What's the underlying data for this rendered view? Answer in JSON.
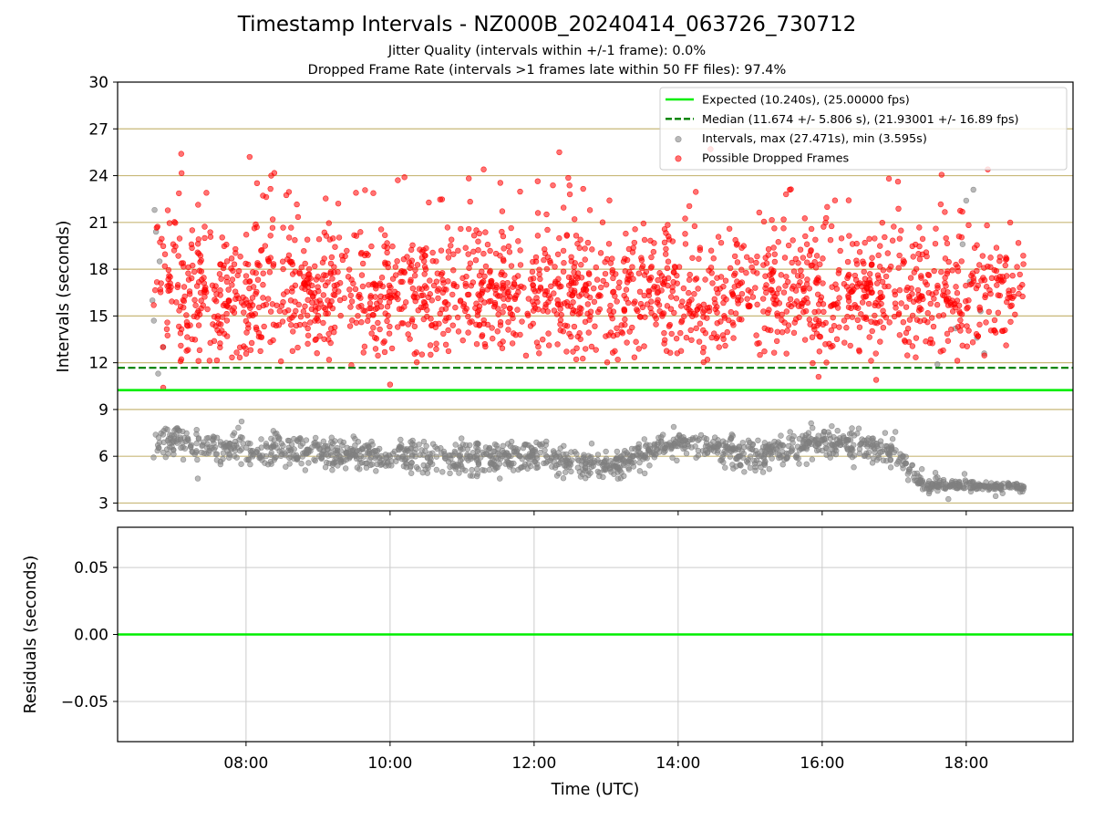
{
  "figure": {
    "title": "Timestamp Intervals - NZ000B_20240414_063726_730712",
    "subtitle_1": "Jitter Quality (intervals within +/-1 frame): 0.0%",
    "subtitle_2": "Dropped Frame Rate (intervals >1 frames late within 50 FF files): 97.4%"
  },
  "colors": {
    "expected": "#00ee00",
    "median": "#007f00",
    "intervals": "#808080",
    "dropped": "#ff0000",
    "hgrid": "#c8b878",
    "grid": "#cccccc"
  },
  "chart_data": [
    {
      "type": "scatter",
      "panel": "intervals",
      "ylabel": "Intervals (seconds)",
      "xlabel": "",
      "xlim": [
        "06:13",
        "19:29"
      ],
      "ylim": [
        2.5,
        30
      ],
      "yticks": [
        3,
        6,
        9,
        12,
        15,
        18,
        21,
        24,
        27,
        30
      ],
      "yticklabels": [
        "3",
        "6",
        "9",
        "12",
        "15",
        "18",
        "21",
        "24",
        "27",
        "30"
      ],
      "xticks": [
        "08:00",
        "10:00",
        "12:00",
        "14:00",
        "16:00",
        "18:00"
      ],
      "grid": "horizontal",
      "legend_position": "top-right",
      "reference_lines": [
        {
          "name": "Expected (10.240s), (25.00000 fps)",
          "y": 10.24,
          "style": "solid",
          "color": "#00ee00"
        },
        {
          "name": "Median (11.674 +/- 5.806 s), (21.93001 +/- 16.89 fps)",
          "y": 11.674,
          "style": "dashed",
          "color": "#007f00"
        }
      ],
      "series": [
        {
          "name": "Intervals, max (27.471s), min (3.595s)",
          "color": "#808080",
          "x_range": [
            "06:43",
            "18:48"
          ],
          "y_trend": [
            {
              "x": "06:43",
              "y_range": [
                5.5,
                8.5
              ]
            },
            {
              "x": "08:00",
              "y_range": [
                5.0,
                8.0
              ]
            },
            {
              "x": "10:00",
              "y_range": [
                4.5,
                7.5
              ]
            },
            {
              "x": "12:00",
              "y_range": [
                4.5,
                7.5
              ]
            },
            {
              "x": "13:00",
              "y_range": [
                4.0,
                6.5
              ]
            },
            {
              "x": "14:00",
              "y_range": [
                5.5,
                8.5
              ]
            },
            {
              "x": "15:00",
              "y_range": [
                4.5,
                7.5
              ]
            },
            {
              "x": "16:00",
              "y_range": [
                5.5,
                8.5
              ]
            },
            {
              "x": "17:00",
              "y_range": [
                5.0,
                7.5
              ]
            },
            {
              "x": "17:25",
              "y_range": [
                3.7,
                4.6
              ]
            },
            {
              "x": "18:48",
              "y_range": [
                3.6,
                4.4
              ]
            }
          ],
          "max": 27.471,
          "min": 3.595
        },
        {
          "name": "Possible Dropped Frames",
          "color": "#ff0000",
          "x_range": [
            "06:43",
            "18:48"
          ],
          "y_range": [
            11.7,
            25.5
          ],
          "y_outliers": [
            10.4,
            10.6,
            10.9,
            11.1
          ]
        }
      ]
    },
    {
      "type": "line",
      "panel": "residuals",
      "ylabel": "Residuals (seconds)",
      "xlabel": "Time (UTC)",
      "xlim": [
        "06:13",
        "19:29"
      ],
      "ylim": [
        -0.08,
        0.08
      ],
      "yticks": [
        0.05,
        0.0,
        -0.05
      ],
      "yticklabels": [
        "0.05",
        "0.00",
        "−0.05"
      ],
      "xticks": [
        "08:00",
        "10:00",
        "12:00",
        "14:00",
        "16:00",
        "18:00"
      ],
      "grid": "both",
      "series": [
        {
          "name": "",
          "color": "#00ee00",
          "y": 0.0
        }
      ]
    }
  ]
}
